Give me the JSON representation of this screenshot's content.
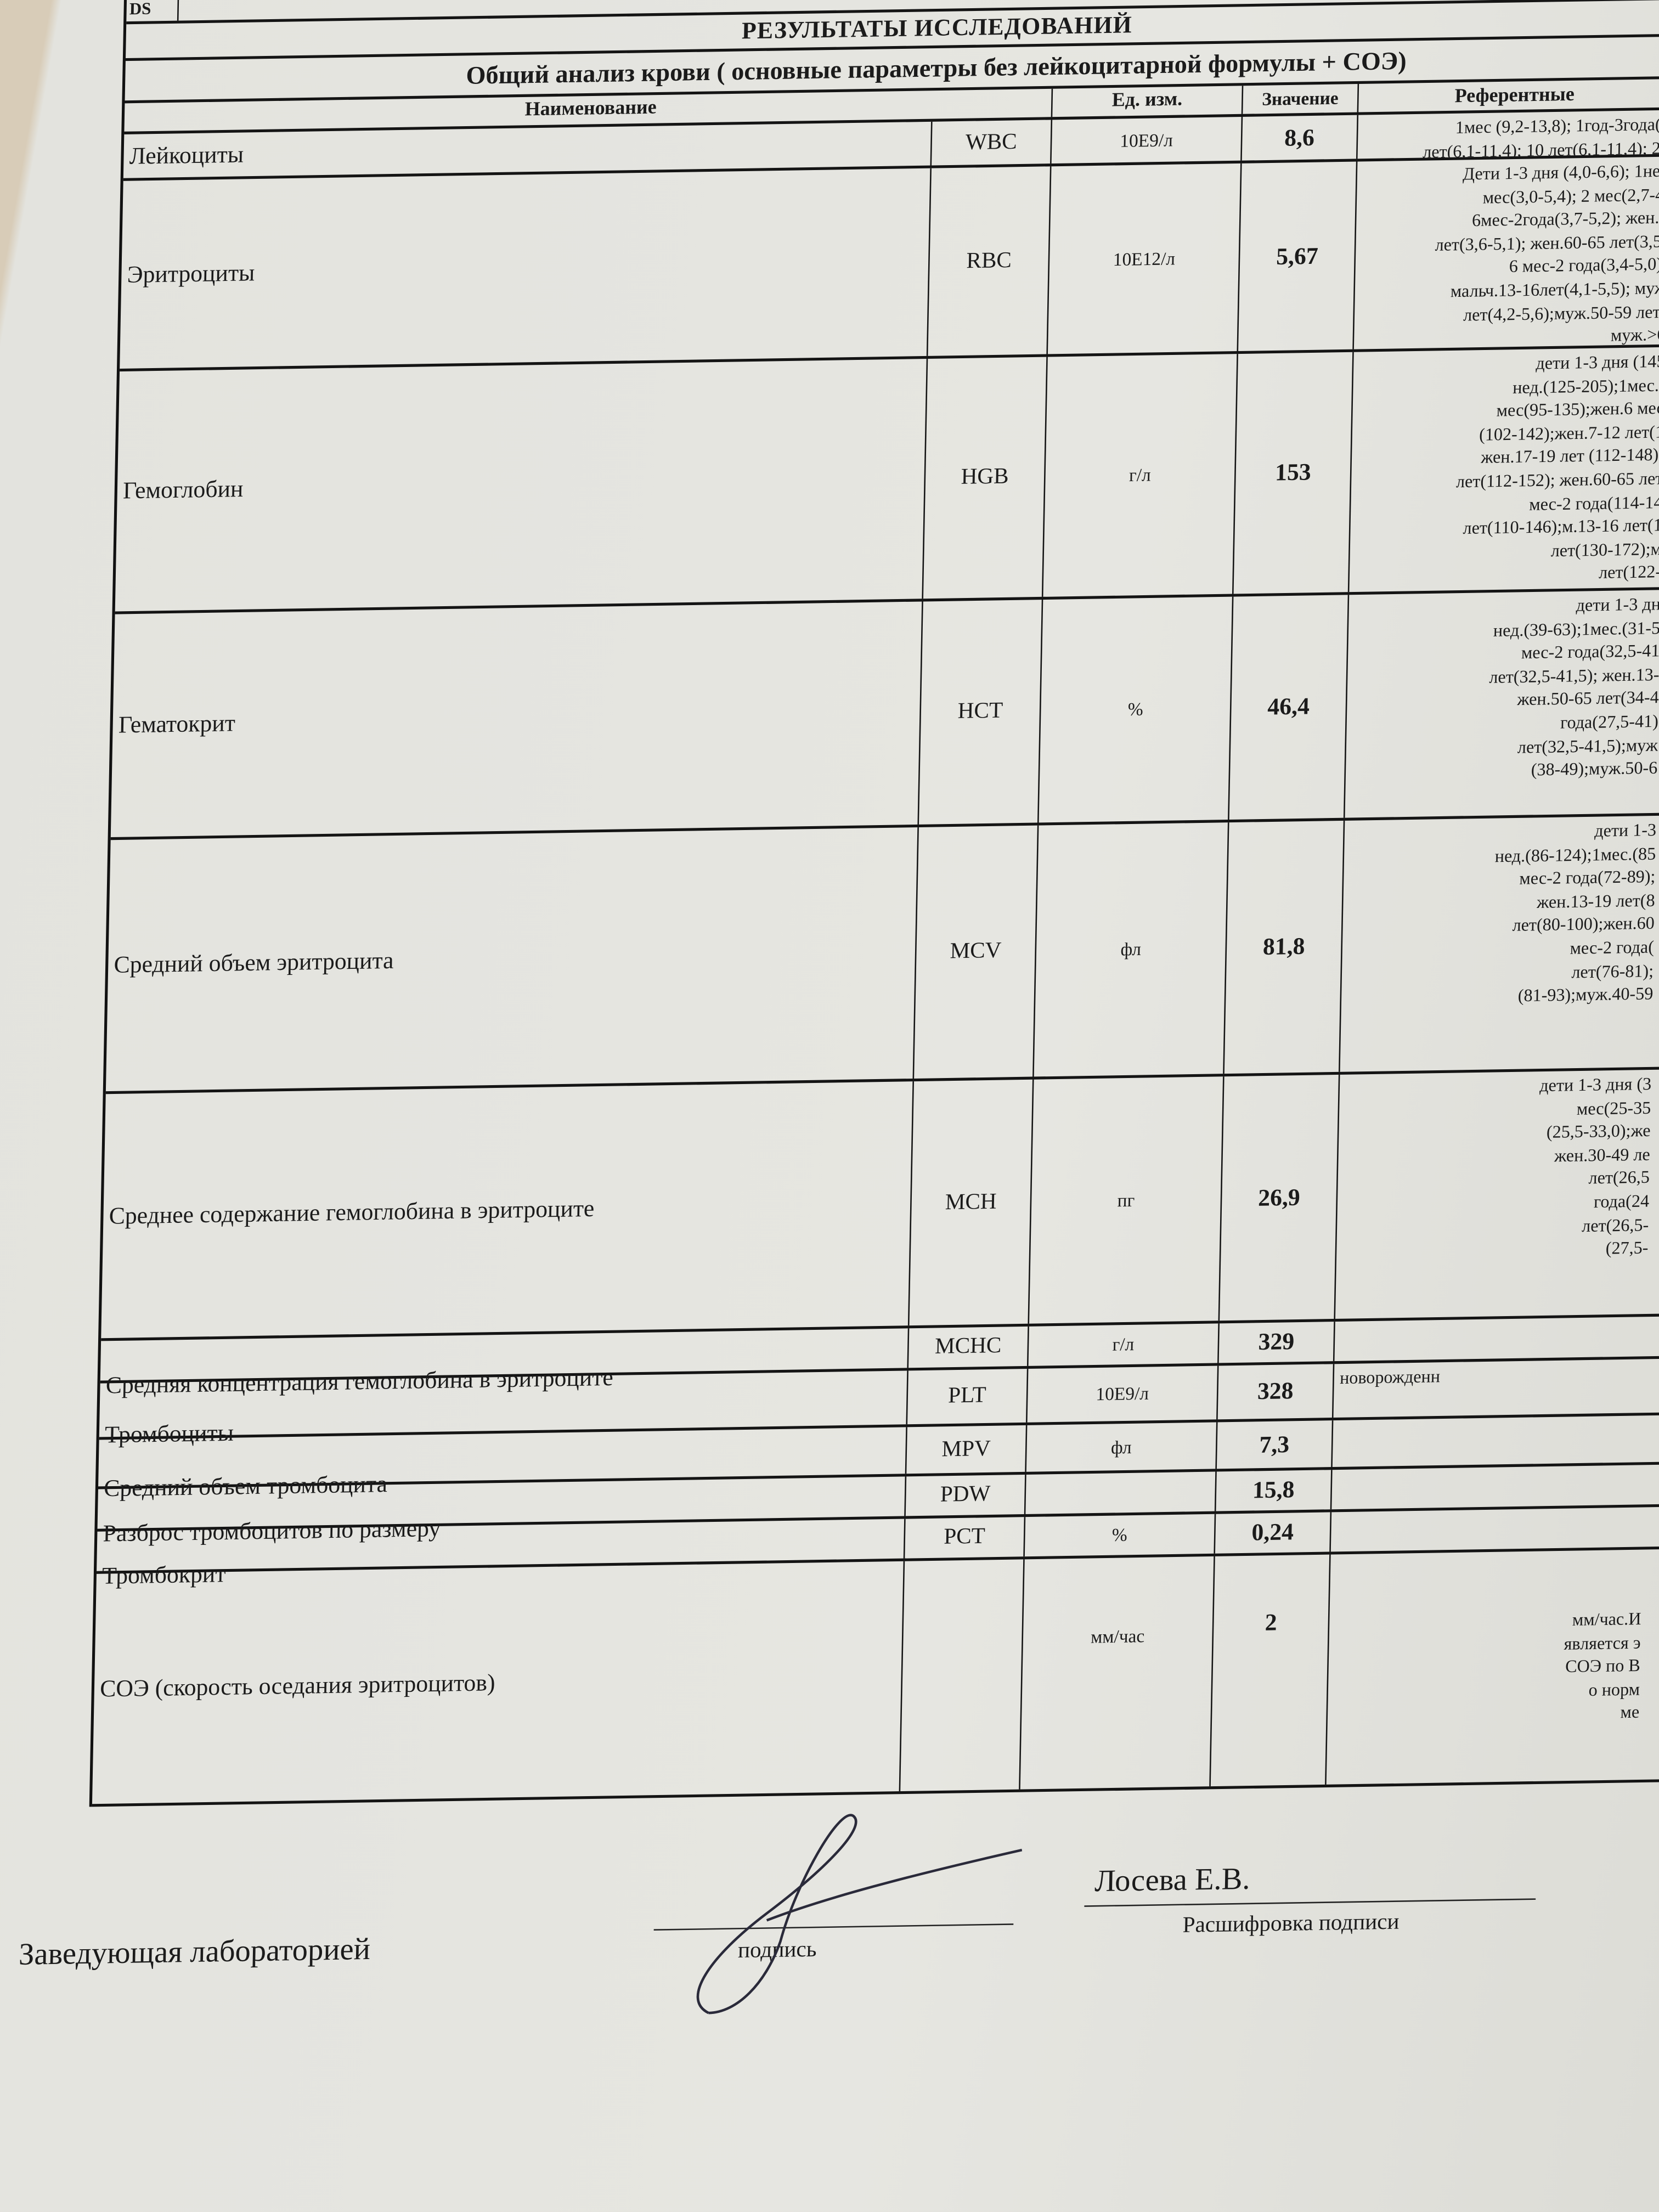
{
  "header": {
    "ds": "DS",
    "title": "РЕЗУЛЬТАТЫ ИССЛЕДОВАНИЙ",
    "subtitle": "Общий анализ крови ( основные параметры без лейкоцитарной формулы  + СОЭ)"
  },
  "columns": {
    "name": "Наименование",
    "unit": "Ед. изм.",
    "value": "Значение",
    "reference": "Референтные"
  },
  "rows": [
    {
      "name": "Лейкоциты",
      "code": "WBC",
      "unit": "10E9/л",
      "value": "8,6",
      "ref": [
        "1мес (9,2-13,8); 1год-3года(6",
        "лет(6,1-11,4); 10 лет(6,1-11,4); 21"
      ]
    },
    {
      "name": "Эритроциты",
      "code": "RBC",
      "unit": "10E12/л",
      "value": "5,67",
      "ref": [
        "Дети 1-3 дня (4,0-6,6); 1нед",
        "мес(3,0-5,4); 2 мес(2,7-4,",
        "6мес-2года(3,7-5,2); жен.3",
        "лет(3,6-5,1); жен.60-65 лет(3,5-",
        "6 мес-2 года(3,4-5,0);",
        "мальч.13-16лет(4,1-5,5); муж",
        "лет(4,2-5,6);муж.50-59 лет(",
        "муж.>6"
      ]
    },
    {
      "name": "Гемоглобин",
      "code": "HGB",
      "unit": "г/л",
      "value": "153",
      "ref": [
        "дети 1-3 дня (145",
        "нед.(125-205);1мес.(",
        "мес(95-135);жен.6 мес",
        "(102-142);жен.7-12 лет(1",
        "жен.17-19 лет (112-148);",
        "лет(112-152); жен.60-65 лет",
        "мес-2 года(114-14",
        "лет(110-146);м.13-16 лет(1",
        "лет(130-172);м",
        "лет(122-"
      ]
    },
    {
      "name": "Гематокрит",
      "code": "HCT",
      "unit": "%",
      "value": "46,4",
      "ref": [
        "дети 1-3 дн",
        "нед.(39-63);1мес.(31-5",
        "мес-2 года(32,5-41",
        "лет(32,5-41,5); жен.13-",
        "жен.50-65 лет(34-4",
        "года(27,5-41)",
        "лет(32,5-41,5);муж",
        "(38-49);муж.50-6"
      ]
    },
    {
      "name": "Средний объем эритроцита",
      "code": "MCV",
      "unit": "фл",
      "value": "81,8",
      "ref": [
        "дети 1-3",
        "нед.(86-124);1мес.(85",
        "мес-2 года(72-89);",
        "жен.13-19 лет(8",
        "лет(80-100);жен.60",
        "мес-2 года(",
        "лет(76-81);",
        "(81-93);муж.40-59"
      ]
    },
    {
      "name": "Среднее содержание гемоглобина в эритроците",
      "code": "MCH",
      "unit": "пг",
      "value": "26,9",
      "ref": [
        "дети 1-3 дня (3",
        "мес(25-35",
        "(25,5-33,0);же",
        "жен.30-49 ле",
        "лет(26,5",
        "года(24",
        "лет(26,5-",
        "(27,5-"
      ]
    },
    {
      "name": "Средняя концентрация гемоглобина в эритроците",
      "code": "MCHC",
      "unit": "г/л",
      "value": "329",
      "ref": []
    },
    {
      "name": "Тромбоциты",
      "code": "PLT",
      "unit": "10E9/л",
      "value": "328",
      "ref": [
        "новорожденн"
      ]
    },
    {
      "name": "Средний объем тромбоцита",
      "code": "MPV",
      "unit": "фл",
      "value": "7,3",
      "ref": []
    },
    {
      "name": "Разброс тромбоцитов по размеру",
      "code": "PDW",
      "unit": "",
      "value": "15,8",
      "ref": []
    },
    {
      "name": "Тромбокрит",
      "code": "PCT",
      "unit": "%",
      "value": "0,24",
      "ref": []
    },
    {
      "name": "СОЭ (скорость оседания эритроцитов)",
      "code": "",
      "unit": "мм/час",
      "value": "2",
      "ref": [
        "мм/час.И",
        "является э",
        "СОЭ по В",
        "о норм",
        "ме"
      ]
    }
  ],
  "footer": {
    "position": "Заведующая лабораторией",
    "signature_caption": "подпись",
    "name": "Лосева Е.В.",
    "name_caption": "Расшифровка подписи"
  }
}
